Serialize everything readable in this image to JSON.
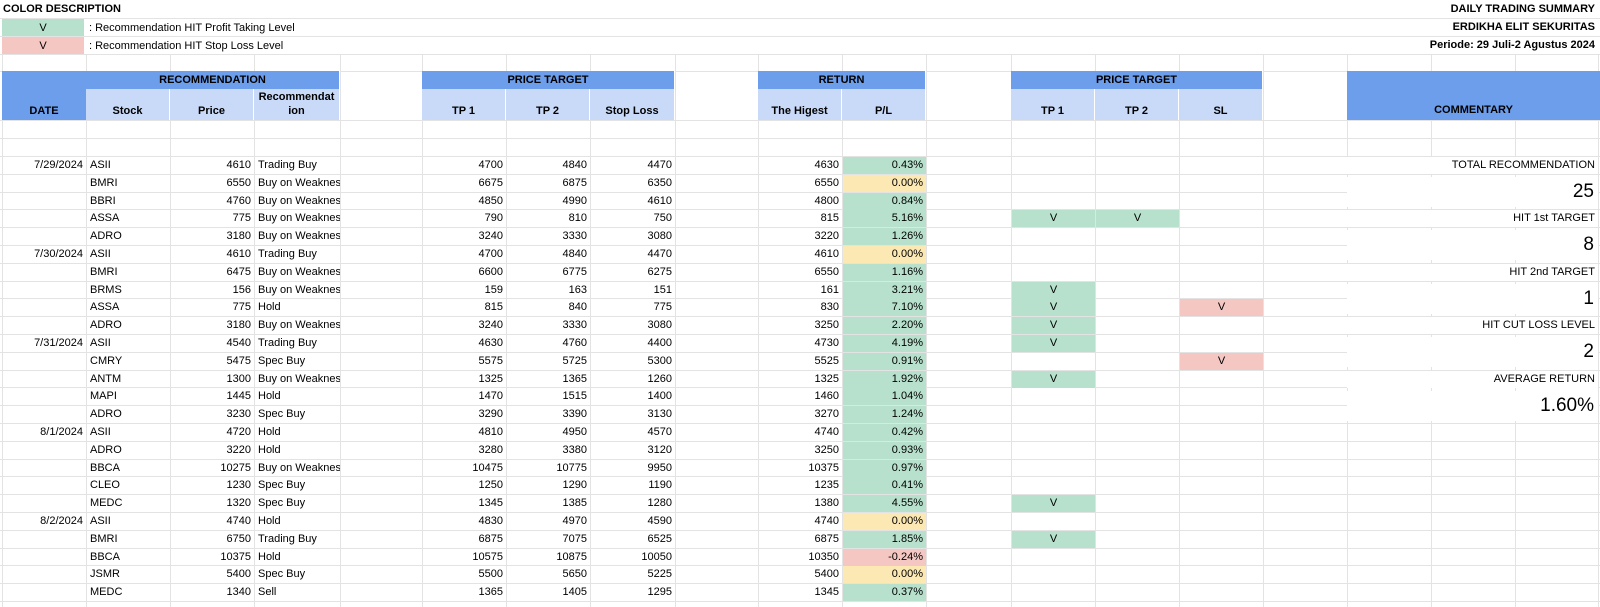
{
  "legend": {
    "title": "COLOR DESCRIPTION",
    "items": [
      {
        "mark": "V",
        "text": ": Recommendation HIT Profit Taking Level",
        "color": "#b7e1cd"
      },
      {
        "mark": "V",
        "text": ": Recommendation HIT Stop Loss Level",
        "color": "#f4c7c3"
      }
    ]
  },
  "report": {
    "title": "DAILY TRADING SUMMARY",
    "company": "ERDIKHA ELIT SEKURITAS",
    "period": "Periode:  29 Juli-2 Agustus 2024"
  },
  "headers": {
    "date": "DATE",
    "recommendation_group": "RECOMMENDATION",
    "stock": "Stock",
    "price": "Price",
    "recommendation_l1": "Recommendat",
    "recommendation_l2": "ion",
    "price_target_group": "PRICE TARGET",
    "tp1": "TP 1",
    "tp2": "TP 2",
    "stop_loss": "Stop Loss",
    "return_group": "RETURN",
    "highest": "The Higest",
    "pl": "P/L",
    "price_target_group2": "PRICE TARGET",
    "hit_tp1": "TP 1",
    "hit_tp2": "TP 2",
    "hit_sl": "SL",
    "commentary": "COMMENTARY"
  },
  "rows": [
    {
      "date": "7/29/2024",
      "stock": "ASII",
      "price": "4610",
      "rec": "Trading Buy",
      "tp1": "4700",
      "tp2": "4840",
      "sl": "4470",
      "high": "4630",
      "pl": "0.43%",
      "pl_status": "green",
      "hit_tp1": "",
      "hit_tp2": "",
      "hit_sl": ""
    },
    {
      "date": "",
      "stock": "BMRI",
      "price": "6550",
      "rec": "Buy on Weakness",
      "tp1": "6675",
      "tp2": "6875",
      "sl": "6350",
      "high": "6550",
      "pl": "0.00%",
      "pl_status": "yellow",
      "hit_tp1": "",
      "hit_tp2": "",
      "hit_sl": ""
    },
    {
      "date": "",
      "stock": "BBRI",
      "price": "4760",
      "rec": "Buy on Weakness",
      "tp1": "4850",
      "tp2": "4990",
      "sl": "4610",
      "high": "4800",
      "pl": "0.84%",
      "pl_status": "green",
      "hit_tp1": "",
      "hit_tp2": "",
      "hit_sl": ""
    },
    {
      "date": "",
      "stock": "ASSA",
      "price": "775",
      "rec": "Buy on Weakness",
      "tp1": "790",
      "tp2": "810",
      "sl": "750",
      "high": "815",
      "pl": "5.16%",
      "pl_status": "green",
      "hit_tp1": "V",
      "hit_tp2": "V",
      "hit_sl": ""
    },
    {
      "date": "",
      "stock": "ADRO",
      "price": "3180",
      "rec": "Buy on Weakness",
      "tp1": "3240",
      "tp2": "3330",
      "sl": "3080",
      "high": "3220",
      "pl": "1.26%",
      "pl_status": "green",
      "hit_tp1": "",
      "hit_tp2": "",
      "hit_sl": ""
    },
    {
      "date": "7/30/2024",
      "stock": "ASII",
      "price": "4610",
      "rec": "Trading Buy",
      "tp1": "4700",
      "tp2": "4840",
      "sl": "4470",
      "high": "4610",
      "pl": "0.00%",
      "pl_status": "yellow",
      "hit_tp1": "",
      "hit_tp2": "",
      "hit_sl": ""
    },
    {
      "date": "",
      "stock": "BMRI",
      "price": "6475",
      "rec": "Buy on Weakness",
      "tp1": "6600",
      "tp2": "6775",
      "sl": "6275",
      "high": "6550",
      "pl": "1.16%",
      "pl_status": "green",
      "hit_tp1": "",
      "hit_tp2": "",
      "hit_sl": ""
    },
    {
      "date": "",
      "stock": "BRMS",
      "price": "156",
      "rec": "Buy on Weakness",
      "tp1": "159",
      "tp2": "163",
      "sl": "151",
      "high": "161",
      "pl": "3.21%",
      "pl_status": "green",
      "hit_tp1": "V",
      "hit_tp2": "",
      "hit_sl": ""
    },
    {
      "date": "",
      "stock": "ASSA",
      "price": "775",
      "rec": "Hold",
      "tp1": "815",
      "tp2": "840",
      "sl": "775",
      "high": "830",
      "pl": "7.10%",
      "pl_status": "green",
      "hit_tp1": "V",
      "hit_tp2": "",
      "hit_sl": "V"
    },
    {
      "date": "",
      "stock": "ADRO",
      "price": "3180",
      "rec": "Buy on Weakness",
      "tp1": "3240",
      "tp2": "3330",
      "sl": "3080",
      "high": "3250",
      "pl": "2.20%",
      "pl_status": "green",
      "hit_tp1": "V",
      "hit_tp2": "",
      "hit_sl": ""
    },
    {
      "date": "7/31/2024",
      "stock": "ASII",
      "price": "4540",
      "rec": "Trading Buy",
      "tp1": "4630",
      "tp2": "4760",
      "sl": "4400",
      "high": "4730",
      "pl": "4.19%",
      "pl_status": "green",
      "hit_tp1": "V",
      "hit_tp2": "",
      "hit_sl": ""
    },
    {
      "date": "",
      "stock": "CMRY",
      "price": "5475",
      "rec": "Spec Buy",
      "tp1": "5575",
      "tp2": "5725",
      "sl": "5300",
      "high": "5525",
      "pl": "0.91%",
      "pl_status": "green",
      "hit_tp1": "",
      "hit_tp2": "",
      "hit_sl": "V"
    },
    {
      "date": "",
      "stock": "ANTM",
      "price": "1300",
      "rec": "Buy on Weakness",
      "tp1": "1325",
      "tp2": "1365",
      "sl": "1260",
      "high": "1325",
      "pl": "1.92%",
      "pl_status": "green",
      "hit_tp1": "V",
      "hit_tp2": "",
      "hit_sl": ""
    },
    {
      "date": "",
      "stock": "MAPI",
      "price": "1445",
      "rec": "Hold",
      "tp1": "1470",
      "tp2": "1515",
      "sl": "1400",
      "high": "1460",
      "pl": "1.04%",
      "pl_status": "green",
      "hit_tp1": "",
      "hit_tp2": "",
      "hit_sl": ""
    },
    {
      "date": "",
      "stock": "ADRO",
      "price": "3230",
      "rec": "Spec Buy",
      "tp1": "3290",
      "tp2": "3390",
      "sl": "3130",
      "high": "3270",
      "pl": "1.24%",
      "pl_status": "green",
      "hit_tp1": "",
      "hit_tp2": "",
      "hit_sl": ""
    },
    {
      "date": "8/1/2024",
      "stock": "ASII",
      "price": "4720",
      "rec": "Hold",
      "tp1": "4810",
      "tp2": "4950",
      "sl": "4570",
      "high": "4740",
      "pl": "0.42%",
      "pl_status": "green",
      "hit_tp1": "",
      "hit_tp2": "",
      "hit_sl": ""
    },
    {
      "date": "",
      "stock": "ADRO",
      "price": "3220",
      "rec": "Hold",
      "tp1": "3280",
      "tp2": "3380",
      "sl": "3120",
      "high": "3250",
      "pl": "0.93%",
      "pl_status": "green",
      "hit_tp1": "",
      "hit_tp2": "",
      "hit_sl": ""
    },
    {
      "date": "",
      "stock": "BBCA",
      "price": "10275",
      "rec": "Buy on Weakness",
      "tp1": "10475",
      "tp2": "10775",
      "sl": "9950",
      "high": "10375",
      "pl": "0.97%",
      "pl_status": "green",
      "hit_tp1": "",
      "hit_tp2": "",
      "hit_sl": ""
    },
    {
      "date": "",
      "stock": "CLEO",
      "price": "1230",
      "rec": "Spec Buy",
      "tp1": "1250",
      "tp2": "1290",
      "sl": "1190",
      "high": "1235",
      "pl": "0.41%",
      "pl_status": "green",
      "hit_tp1": "",
      "hit_tp2": "",
      "hit_sl": ""
    },
    {
      "date": "",
      "stock": "MEDC",
      "price": "1320",
      "rec": "Spec Buy",
      "tp1": "1345",
      "tp2": "1385",
      "sl": "1280",
      "high": "1380",
      "pl": "4.55%",
      "pl_status": "green",
      "hit_tp1": "V",
      "hit_tp2": "",
      "hit_sl": ""
    },
    {
      "date": "8/2/2024",
      "stock": "ASII",
      "price": "4740",
      "rec": "Hold",
      "tp1": "4830",
      "tp2": "4970",
      "sl": "4590",
      "high": "4740",
      "pl": "0.00%",
      "pl_status": "yellow",
      "hit_tp1": "",
      "hit_tp2": "",
      "hit_sl": ""
    },
    {
      "date": "",
      "stock": "BMRI",
      "price": "6750",
      "rec": "Trading Buy",
      "tp1": "6875",
      "tp2": "7075",
      "sl": "6525",
      "high": "6875",
      "pl": "1.85%",
      "pl_status": "green",
      "hit_tp1": "V",
      "hit_tp2": "",
      "hit_sl": ""
    },
    {
      "date": "",
      "stock": "BBCA",
      "price": "10375",
      "rec": "Hold",
      "tp1": "10575",
      "tp2": "10875",
      "sl": "10050",
      "high": "10350",
      "pl": "-0.24%",
      "pl_status": "red",
      "hit_tp1": "",
      "hit_tp2": "",
      "hit_sl": ""
    },
    {
      "date": "",
      "stock": "JSMR",
      "price": "5400",
      "rec": "Spec Buy",
      "tp1": "5500",
      "tp2": "5650",
      "sl": "5225",
      "high": "5400",
      "pl": "0.00%",
      "pl_status": "yellow",
      "hit_tp1": "",
      "hit_tp2": "",
      "hit_sl": ""
    },
    {
      "date": "",
      "stock": "MEDC",
      "price": "1340",
      "rec": "Sell",
      "tp1": "1365",
      "tp2": "1405",
      "sl": "1295",
      "high": "1345",
      "pl": "0.37%",
      "pl_status": "green",
      "hit_tp1": "",
      "hit_tp2": "",
      "hit_sl": ""
    }
  ],
  "summary": [
    {
      "label": "TOTAL RECOMMENDATION",
      "value": "25"
    },
    {
      "label": "HIT 1st TARGET",
      "value": "8"
    },
    {
      "label": "HIT 2nd TARGET",
      "value": "1"
    },
    {
      "label": "HIT CUT LOSS LEVEL",
      "value": "2"
    },
    {
      "label": "AVERAGE RETURN",
      "value": "1.60%"
    }
  ],
  "colors": {
    "header_dark": "#6d9eeb",
    "header_light": "#c9daf8",
    "profit": "#b7e1cd",
    "breakeven": "#fce8b2",
    "loss": "#f4c7c3"
  }
}
